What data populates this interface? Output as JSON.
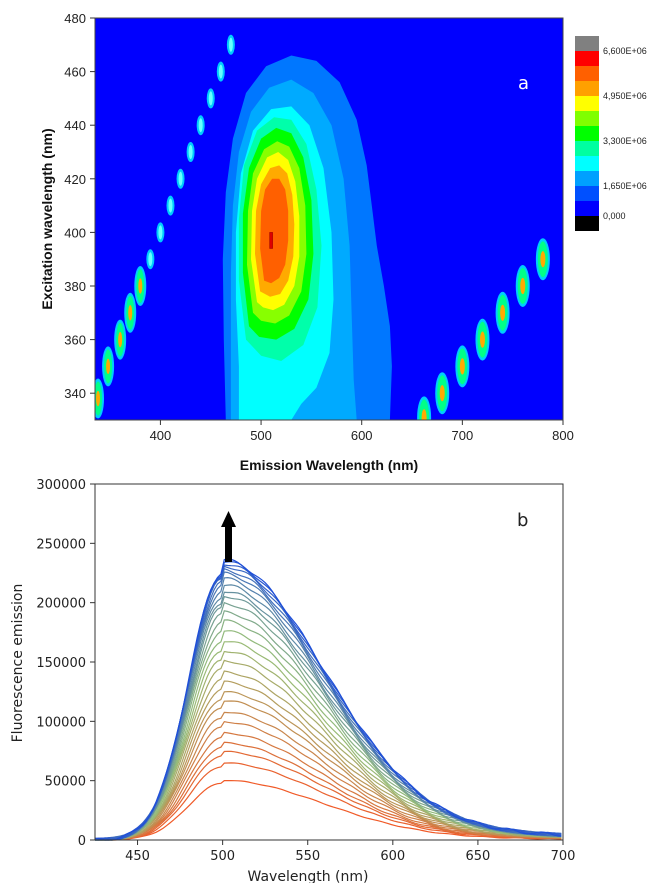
{
  "chart_data": [
    {
      "type": "heatmap",
      "panel_label": "a",
      "title": "",
      "xlabel": "Emission Wavelength (nm)",
      "ylabel": "Excitation wavelength (nm)",
      "xlim": [
        335,
        800
      ],
      "ylim": [
        330,
        480
      ],
      "xticks": [
        400,
        500,
        600,
        700,
        800
      ],
      "yticks": [
        340,
        360,
        380,
        400,
        420,
        440,
        460,
        480
      ],
      "peak": {
        "emission_nm": 510,
        "excitation_nm": 397,
        "intensity": 5400000
      },
      "colorbar": {
        "labels": [
          "6,600E+06",
          "4,950E+06",
          "3,300E+06",
          "1,650E+06",
          "0,000"
        ],
        "min": 0,
        "max": 6600000,
        "colors": [
          "#000000",
          "#0000ff",
          "#0050ff",
          "#00a0ff",
          "#00ffff",
          "#00ffa0",
          "#00ff00",
          "#80ff00",
          "#ffff00",
          "#ffa000",
          "#ff6000",
          "#ff0000",
          "#808080"
        ]
      },
      "contour_levels": [
        {
          "level": 1,
          "color": "#0077ff",
          "polygon": [
            [
              465,
              330
            ],
            [
              463,
              360
            ],
            [
              462,
              390
            ],
            [
              465,
              415
            ],
            [
              472,
              435
            ],
            [
              485,
              452
            ],
            [
              505,
              462
            ],
            [
              530,
              466
            ],
            [
              555,
              464
            ],
            [
              578,
              456
            ],
            [
              595,
              442
            ],
            [
              605,
              425
            ],
            [
              610,
              410
            ],
            [
              615,
              395
            ],
            [
              622,
              380
            ],
            [
              628,
              365
            ],
            [
              630,
              350
            ],
            [
              628,
              330
            ]
          ]
        },
        {
          "level": 2,
          "color": "#00aaff",
          "polygon": [
            [
              470,
              330
            ],
            [
              470,
              355
            ],
            [
              470,
              385
            ],
            [
              472,
              410
            ],
            [
              478,
              430
            ],
            [
              490,
              445
            ],
            [
              508,
              454
            ],
            [
              530,
              457
            ],
            [
              552,
              452
            ],
            [
              570,
              440
            ],
            [
              582,
              420
            ],
            [
              588,
              395
            ],
            [
              590,
              370
            ],
            [
              592,
              345
            ],
            [
              595,
              330
            ]
          ]
        },
        {
          "level": 3,
          "color": "#00ffff",
          "polygon": [
            [
              478,
              330
            ],
            [
              478,
              350
            ],
            [
              475,
              375
            ],
            [
              475,
              400
            ],
            [
              480,
              422
            ],
            [
              492,
              438
            ],
            [
              510,
              446
            ],
            [
              530,
              447
            ],
            [
              548,
              440
            ],
            [
              562,
              424
            ],
            [
              570,
              400
            ],
            [
              572,
              375
            ],
            [
              568,
              355
            ],
            [
              555,
              342
            ],
            [
              540,
              336
            ],
            [
              530,
              330
            ]
          ]
        },
        {
          "level": 4,
          "color": "#00ffaa",
          "polygon": [
            [
              485,
              360
            ],
            [
              478,
              382
            ],
            [
              478,
              405
            ],
            [
              483,
              425
            ],
            [
              496,
              438
            ],
            [
              513,
              443
            ],
            [
              530,
              442
            ],
            [
              545,
              433
            ],
            [
              555,
              416
            ],
            [
              560,
              395
            ],
            [
              556,
              372
            ],
            [
              542,
              358
            ],
            [
              520,
              352
            ],
            [
              500,
              354
            ]
          ]
        },
        {
          "level": 5,
          "color": "#00ff00",
          "polygon": [
            [
              488,
              365
            ],
            [
              482,
              385
            ],
            [
              482,
              407
            ],
            [
              488,
              424
            ],
            [
              500,
              435
            ],
            [
              515,
              439
            ],
            [
              530,
              437
            ],
            [
              542,
              428
            ],
            [
              550,
              412
            ],
            [
              552,
              392
            ],
            [
              547,
              375
            ],
            [
              533,
              364
            ],
            [
              515,
              360
            ],
            [
              498,
              361
            ]
          ]
        },
        {
          "level": 6,
          "color": "#88ff00",
          "polygon": [
            [
              492,
              370
            ],
            [
              486,
              388
            ],
            [
              487,
              408
            ],
            [
              492,
              422
            ],
            [
              503,
              431
            ],
            [
              516,
              434
            ],
            [
              528,
              432
            ],
            [
              538,
              424
            ],
            [
              544,
              410
            ],
            [
              545,
              392
            ],
            [
              540,
              378
            ],
            [
              528,
              369
            ],
            [
              514,
              366
            ],
            [
              500,
              367
            ]
          ]
        },
        {
          "level": 7,
          "color": "#ffff00",
          "polygon": [
            [
              496,
              374
            ],
            [
              490,
              390
            ],
            [
              491,
              408
            ],
            [
              496,
              420
            ],
            [
              506,
              428
            ],
            [
              517,
              430
            ],
            [
              527,
              427
            ],
            [
              534,
              419
            ],
            [
              538,
              406
            ],
            [
              538,
              391
            ],
            [
              533,
              380
            ],
            [
              523,
              373
            ],
            [
              512,
              371
            ],
            [
              502,
              372
            ]
          ]
        },
        {
          "level": 8,
          "color": "#ffaa00",
          "polygon": [
            [
              499,
              378
            ],
            [
              494,
              392
            ],
            [
              495,
              408
            ],
            [
              500,
              418
            ],
            [
              509,
              424
            ],
            [
              518,
              425
            ],
            [
              526,
              422
            ],
            [
              531,
              414
            ],
            [
              533,
              403
            ],
            [
              532,
              391
            ],
            [
              527,
              382
            ],
            [
              519,
              377
            ],
            [
              509,
              376
            ]
          ]
        },
        {
          "level": 9,
          "color": "#ff6000",
          "polygon": [
            [
              503,
              382
            ],
            [
              499,
              394
            ],
            [
              500,
              408
            ],
            [
              504,
              416
            ],
            [
              511,
              420
            ],
            [
              518,
              420
            ],
            [
              524,
              416
            ],
            [
              527,
              408
            ],
            [
              527,
              397
            ],
            [
              524,
              388
            ],
            [
              518,
              383
            ],
            [
              510,
              381
            ]
          ]
        }
      ],
      "scatter_bands": [
        {
          "name": "first-order Rayleigh scatter",
          "points": [
            [
              338,
              338
            ],
            [
              348,
              350
            ],
            [
              360,
              360
            ],
            [
              370,
              370
            ],
            [
              380,
              380
            ],
            [
              390,
              390
            ],
            [
              400,
              400
            ],
            [
              410,
              410
            ],
            [
              420,
              420
            ],
            [
              430,
              430
            ],
            [
              440,
              440
            ],
            [
              450,
              450
            ],
            [
              460,
              460
            ],
            [
              470,
              470
            ]
          ]
        },
        {
          "name": "second-order scatter",
          "points": [
            [
              662,
              331
            ],
            [
              680,
              340
            ],
            [
              700,
              350
            ],
            [
              720,
              360
            ],
            [
              740,
              370
            ],
            [
              760,
              380
            ],
            [
              780,
              390
            ]
          ]
        }
      ]
    },
    {
      "type": "line",
      "panel_label": "b",
      "title": "",
      "xlabel": "Wavelength (nm)",
      "ylabel": "Fluorescence emission",
      "xlim": [
        425,
        700
      ],
      "ylim": [
        0,
        300000
      ],
      "xticks": [
        450,
        500,
        550,
        600,
        650,
        700
      ],
      "yticks": [
        0,
        50000,
        100000,
        150000,
        200000,
        250000,
        300000
      ],
      "annotation": "arrow pointing up (increasing intensity)",
      "series_peaks": [
        48000,
        62000,
        71000,
        78000,
        86000,
        95000,
        103000,
        112000,
        119000,
        127000,
        135000,
        144000,
        152000,
        160000,
        168000,
        176000,
        183000,
        190000,
        196000,
        200000,
        205000,
        210000,
        214000,
        217000,
        220000,
        222000,
        224000,
        225000
      ],
      "peak_wavelength": 500,
      "colors": {
        "low": "#f05a28",
        "high": "#1f4fd8"
      }
    }
  ]
}
